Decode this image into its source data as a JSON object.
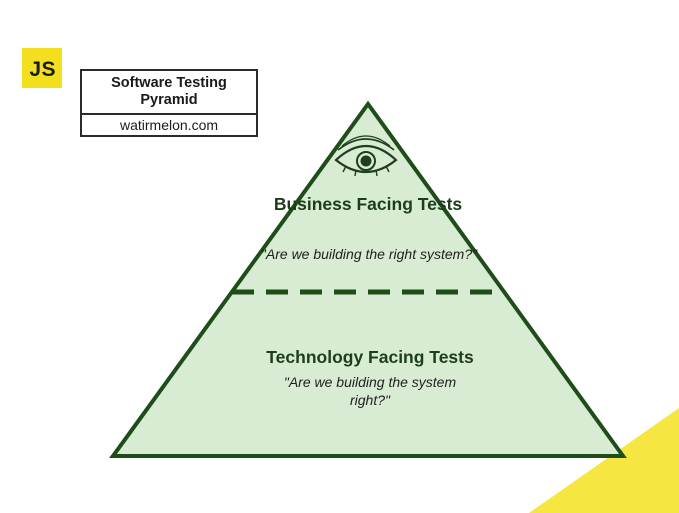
{
  "logo": {
    "text": "JS"
  },
  "title_box": {
    "title": "Software Testing Pyramid",
    "site": "watirmelon.com"
  },
  "pyramid": {
    "top_section": {
      "icon": "eye-icon",
      "title": "Business Facing Tests",
      "question": "\"Are we building the right system?\""
    },
    "bottom_section": {
      "title": "Technology Facing Tests",
      "question": "\"Are we building the system right?\""
    }
  },
  "colors": {
    "pyramid_fill": "#d8ebd3",
    "pyramid_stroke": "#1f4d1a",
    "logo_yellow": "#f3df1d",
    "corner_yellow": "#f5e642"
  }
}
